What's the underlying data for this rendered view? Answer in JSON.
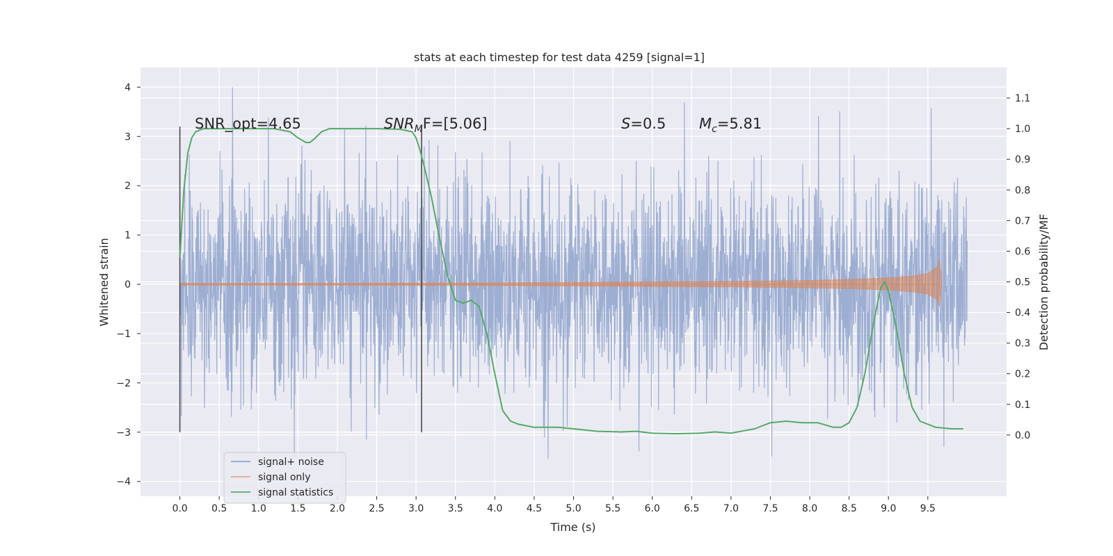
{
  "chart_data": {
    "type": "line",
    "title": "stats at each timestep for test data 4259 [signal=1]",
    "xlabel": "Time (s)",
    "ylabel": "Whitened strain",
    "ylabel_right": "Detection probability/MF",
    "xlim": [
      -0.5,
      10.5
    ],
    "ylim": [
      -4.3,
      4.4
    ],
    "ylim_right": [
      -0.2,
      1.2
    ],
    "x_ticks": [
      "0.0",
      "0.5",
      "1.0",
      "1.5",
      "2.0",
      "2.5",
      "3.0",
      "3.5",
      "4.0",
      "4.5",
      "5.0",
      "5.5",
      "6.0",
      "6.5",
      "7.0",
      "7.5",
      "8.0",
      "8.5",
      "9.0",
      "9.5"
    ],
    "y_ticks": [
      "4",
      "3",
      "2",
      "1",
      "0",
      "−1",
      "−2",
      "−3",
      "−4"
    ],
    "y_ticks_right": [
      "1.1",
      "1.0",
      "0.9",
      "0.8",
      "0.7",
      "0.6",
      "0.5",
      "0.4",
      "0.3",
      "0.2",
      "0.1",
      "0.0"
    ],
    "grid": true,
    "legend_position": "lower-left",
    "annotations": {
      "snr_opt": "SNR_opt=4.65",
      "snr_mf_sym": "SNR",
      "snr_mf_sub": "M",
      "snr_mf_val": "F=[5.06]",
      "s_sym": "S",
      "s_val": "=0.5",
      "mc_sym": "M",
      "mc_sub": "c",
      "mc_val": "=5.81"
    },
    "vertical_lines": [
      0.0,
      3.07
    ],
    "series": [
      {
        "name": "signal+ noise",
        "color": "#8fa3cc",
        "description_range": {
          "x": [
            0.0,
            10.0
          ],
          "y": [
            -3.9,
            4.05
          ]
        }
      },
      {
        "name": "signal only",
        "color": "#dd8452",
        "envelope_x": [
          0.0,
          2.0,
          4.0,
          5.0,
          6.0,
          7.0,
          8.0,
          8.5,
          9.0,
          9.3,
          9.5,
          9.62,
          9.65,
          9.68
        ],
        "envelope_y": [
          0.02,
          0.02,
          0.03,
          0.04,
          0.05,
          0.06,
          0.08,
          0.1,
          0.13,
          0.17,
          0.22,
          0.35,
          0.5,
          0.0
        ]
      },
      {
        "name": "signal statistics",
        "color": "#55a868",
        "x": [
          0.0,
          0.05,
          0.1,
          0.15,
          0.2,
          0.3,
          0.5,
          0.8,
          1.0,
          1.2,
          1.4,
          1.5,
          1.6,
          1.65,
          1.7,
          1.8,
          1.9,
          2.0,
          2.2,
          2.5,
          2.8,
          2.95,
          3.0,
          3.05,
          3.1,
          3.2,
          3.3,
          3.4,
          3.5,
          3.6,
          3.7,
          3.8,
          3.9,
          4.0,
          4.1,
          4.2,
          4.3,
          4.5,
          4.8,
          5.0,
          5.3,
          5.6,
          5.8,
          6.0,
          6.3,
          6.6,
          6.8,
          7.0,
          7.3,
          7.5,
          7.7,
          7.9,
          8.1,
          8.3,
          8.4,
          8.5,
          8.6,
          8.7,
          8.8,
          8.9,
          8.95,
          9.0,
          9.1,
          9.2,
          9.3,
          9.4,
          9.6,
          9.8,
          9.95
        ],
        "y": [
          0.58,
          0.8,
          0.92,
          0.97,
          0.99,
          1.0,
          1.0,
          1.0,
          1.0,
          1.0,
          0.99,
          0.97,
          0.955,
          0.955,
          0.965,
          0.99,
          1.0,
          1.0,
          1.0,
          1.0,
          0.998,
          0.99,
          0.97,
          0.93,
          0.88,
          0.77,
          0.64,
          0.52,
          0.44,
          0.43,
          0.44,
          0.42,
          0.33,
          0.2,
          0.08,
          0.045,
          0.035,
          0.025,
          0.025,
          0.02,
          0.012,
          0.01,
          0.012,
          0.006,
          0.004,
          0.006,
          0.01,
          0.006,
          0.02,
          0.04,
          0.045,
          0.04,
          0.04,
          0.025,
          0.025,
          0.04,
          0.09,
          0.2,
          0.35,
          0.48,
          0.5,
          0.47,
          0.35,
          0.2,
          0.09,
          0.045,
          0.025,
          0.02,
          0.02
        ]
      }
    ]
  }
}
